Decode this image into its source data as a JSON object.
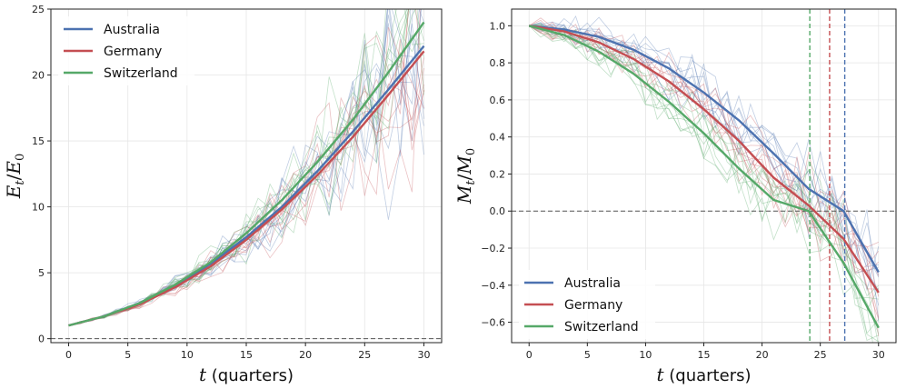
{
  "chart_data": [
    {
      "type": "line",
      "panel": "left",
      "ylabel_main": "E",
      "ylabel_sub_top": "t",
      "ylabel_sub_bottom": "0",
      "xlabel_var": "t",
      "xlabel_unit": "(quarters)",
      "xlim": [
        -1.5,
        31.5
      ],
      "ylim": [
        -0.3,
        25
      ],
      "xticks": [
        0,
        5,
        10,
        15,
        20,
        25,
        30
      ],
      "xtick_labels": [
        "0",
        "5",
        "10",
        "15",
        "20",
        "25",
        "30"
      ],
      "yticks": [
        0,
        5,
        10,
        15,
        20,
        25
      ],
      "ytick_labels": [
        "0",
        "5",
        "10",
        "15",
        "20",
        "25"
      ],
      "hline": 0,
      "grid": true,
      "legend_position": "top-left",
      "x": [
        0,
        3,
        6,
        9,
        12,
        15,
        18,
        21,
        24,
        27,
        30
      ],
      "series": [
        {
          "name": "Australia",
          "color": "#4c72b0",
          "values": [
            1.0,
            1.7,
            2.7,
            4.0,
            5.7,
            7.7,
            10.0,
            12.7,
            15.7,
            18.9,
            22.2
          ]
        },
        {
          "name": "Germany",
          "color": "#c44e52",
          "values": [
            1.0,
            1.7,
            2.6,
            3.9,
            5.5,
            7.5,
            9.8,
            12.4,
            15.3,
            18.5,
            21.8
          ]
        },
        {
          "name": "Switzerland",
          "color": "#55a868",
          "values": [
            1.0,
            1.7,
            2.7,
            4.1,
            5.8,
            8.0,
            10.5,
            13.4,
            16.6,
            20.2,
            24.0
          ]
        }
      ]
    },
    {
      "type": "line",
      "panel": "right",
      "ylabel_main": "M",
      "ylabel_sub_top": "t",
      "ylabel_sub_bottom": "0",
      "xlabel_var": "t",
      "xlabel_unit": "(quarters)",
      "xlim": [
        -1.5,
        31.5
      ],
      "ylim": [
        -0.71,
        1.09
      ],
      "xticks": [
        0,
        5,
        10,
        15,
        20,
        25,
        30
      ],
      "xtick_labels": [
        "0",
        "5",
        "10",
        "15",
        "20",
        "25",
        "30"
      ],
      "yticks": [
        -0.6,
        -0.4,
        -0.2,
        0.0,
        0.2,
        0.4,
        0.6,
        0.8,
        1.0
      ],
      "ytick_labels": [
        "−0.6",
        "−0.4",
        "−0.2",
        "0.0",
        "0.2",
        "0.4",
        "0.6",
        "0.8",
        "1.0"
      ],
      "hline": 0,
      "vlines": [
        {
          "x": 27.1,
          "color": "#4c72b0"
        },
        {
          "x": 25.8,
          "color": "#c44e52"
        },
        {
          "x": 24.1,
          "color": "#55a868"
        }
      ],
      "grid": true,
      "legend_position": "bottom-left",
      "x": [
        0,
        3,
        6,
        9,
        12,
        15,
        18,
        21,
        24,
        27,
        30
      ],
      "series": [
        {
          "name": "Australia",
          "color": "#4c72b0",
          "values": [
            1.0,
            0.98,
            0.94,
            0.87,
            0.77,
            0.64,
            0.49,
            0.31,
            0.12,
            0.0,
            -0.33
          ]
        },
        {
          "name": "Germany",
          "color": "#c44e52",
          "values": [
            1.0,
            0.97,
            0.91,
            0.82,
            0.7,
            0.55,
            0.38,
            0.18,
            0.03,
            -0.15,
            -0.44
          ]
        },
        {
          "name": "Switzerland",
          "color": "#55a868",
          "values": [
            1.0,
            0.95,
            0.86,
            0.74,
            0.59,
            0.42,
            0.23,
            0.06,
            0.0,
            -0.28,
            -0.63
          ]
        }
      ]
    }
  ]
}
